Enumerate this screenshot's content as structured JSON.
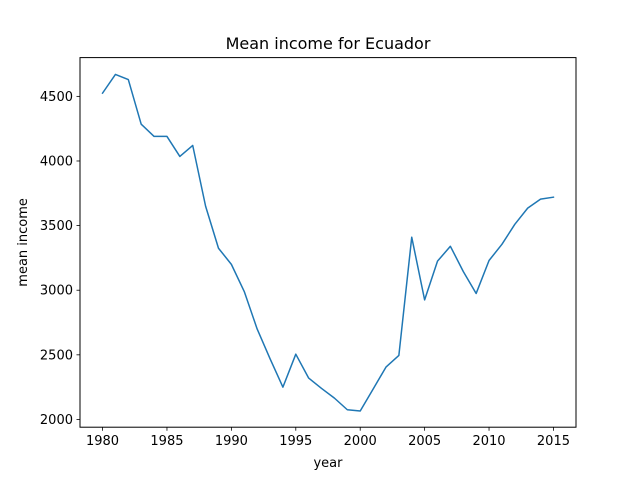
{
  "chart_data": {
    "type": "line",
    "title": "Mean income for Ecuador",
    "xlabel": "year",
    "ylabel": "mean income",
    "xlim": [
      1978.25,
      2016.75
    ],
    "ylim": [
      1940,
      4800
    ],
    "xticks": [
      1980,
      1985,
      1990,
      1995,
      2000,
      2005,
      2010,
      2015
    ],
    "yticks": [
      2000,
      2500,
      3000,
      3500,
      4000,
      4500
    ],
    "grid": false,
    "legend": "none",
    "series": [
      {
        "color": "#1f77b4",
        "x": [
          1980,
          1981,
          1982,
          1983,
          1984,
          1985,
          1986,
          1987,
          1988,
          1989,
          1990,
          1991,
          1992,
          1993,
          1994,
          1995,
          1996,
          1997,
          1998,
          1999,
          2000,
          2001,
          2002,
          2003,
          2004,
          2005,
          2006,
          2007,
          2008,
          2009,
          2010,
          2011,
          2012,
          2013,
          2014,
          2015
        ],
        "y": [
          4525,
          4670,
          4630,
          4285,
          4190,
          4190,
          4035,
          4120,
          3650,
          3325,
          3200,
          2990,
          2700,
          2470,
          2250,
          2505,
          2320,
          2240,
          2165,
          2075,
          2065,
          2235,
          2405,
          2495,
          3410,
          2925,
          3225,
          3340,
          3145,
          2975,
          3230,
          3355,
          3510,
          3635,
          3705,
          3720
        ]
      }
    ]
  }
}
